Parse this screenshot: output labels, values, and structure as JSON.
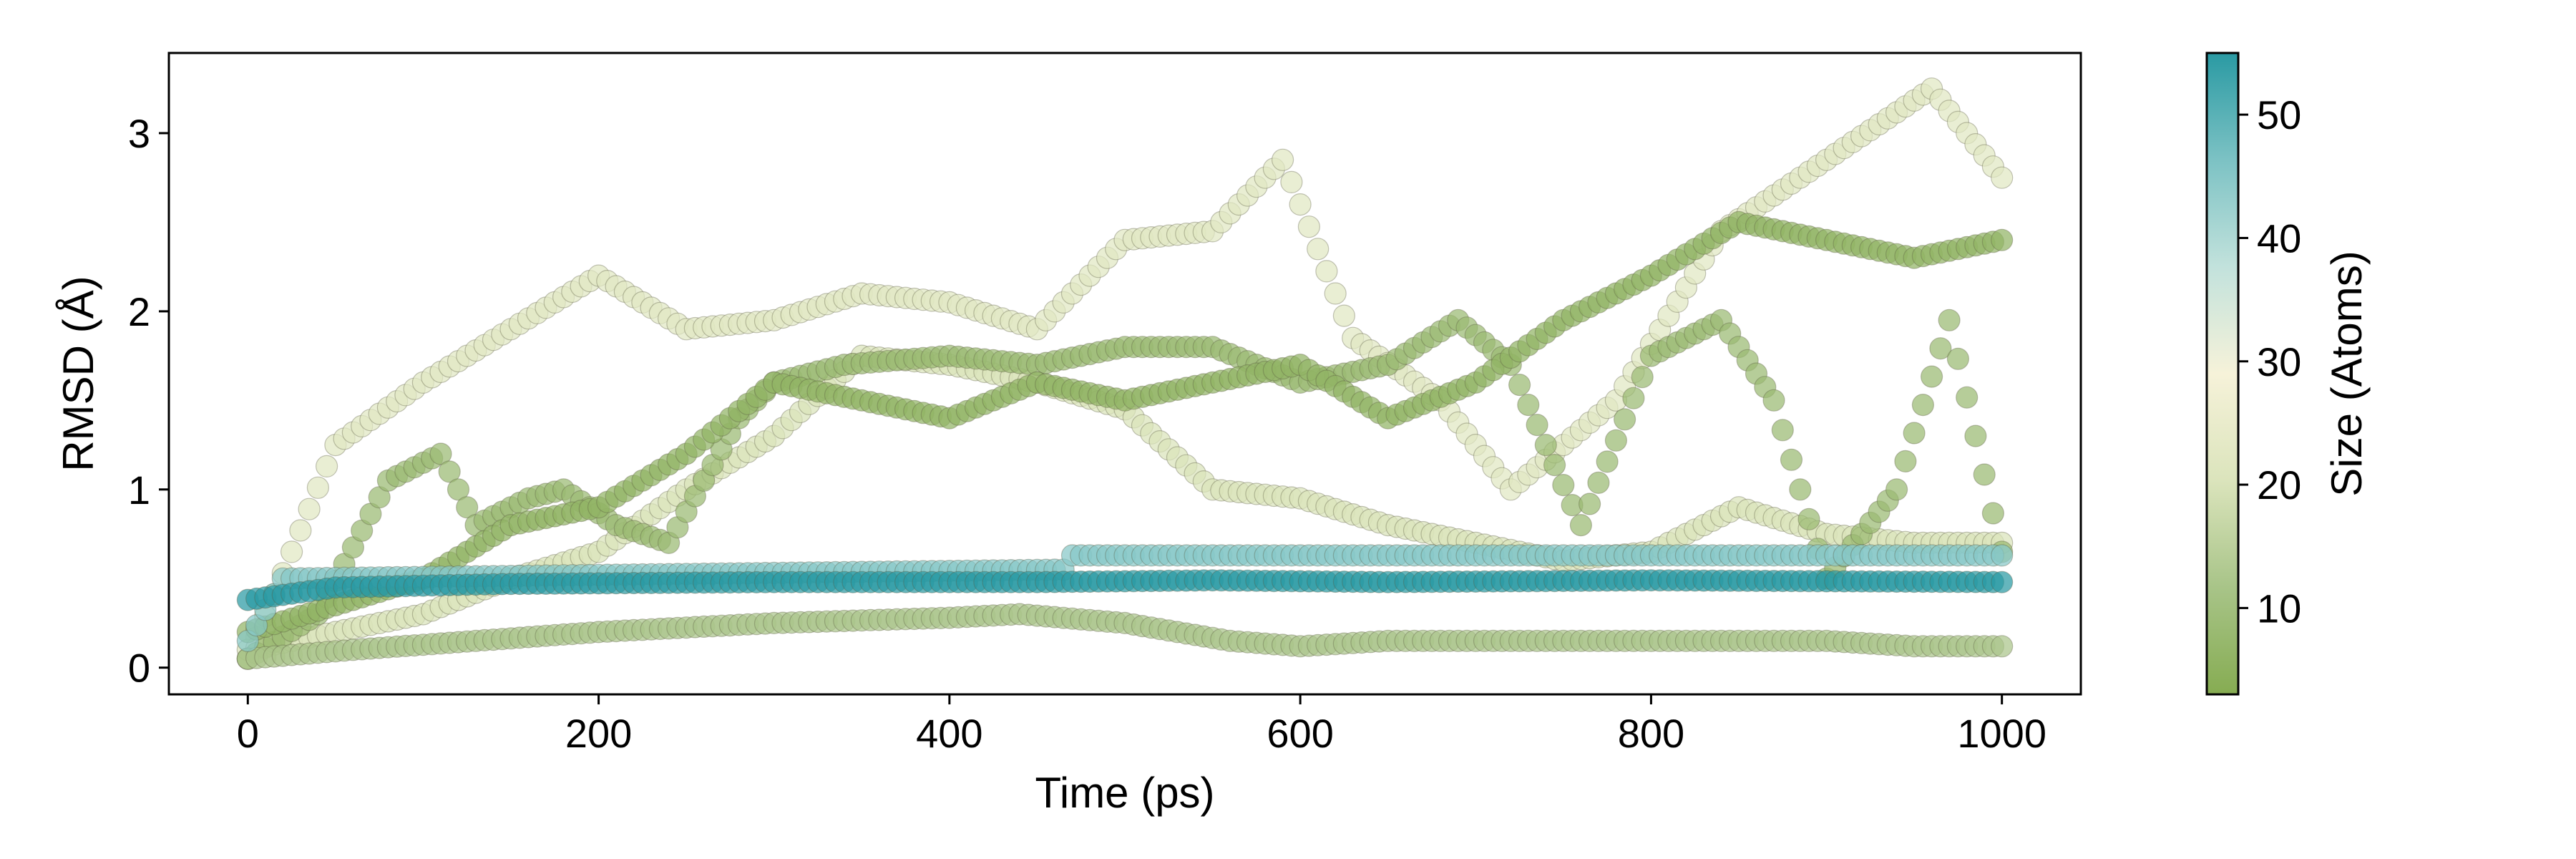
{
  "chart_data": {
    "type": "scatter",
    "title": "",
    "xlabel": "Time (ps)",
    "ylabel": "RMSD (Å)",
    "xlim": [
      -45,
      1045
    ],
    "ylim": [
      -0.15,
      3.45
    ],
    "xticks": [
      0,
      200,
      400,
      600,
      800,
      1000
    ],
    "yticks": [
      0,
      1,
      2,
      3
    ],
    "grid": false,
    "colorbar": {
      "label": "Size (Atoms)",
      "range": [
        3,
        55
      ],
      "ticks": [
        10,
        20,
        30,
        40,
        50
      ],
      "colors": [
        "#86ac52",
        "#a8c488",
        "#dbe4bc",
        "#f6f2d9",
        "#c2e2dc",
        "#7cc2c4",
        "#2a9aa3"
      ]
    },
    "series": [
      {
        "size": 22,
        "x": [
          0,
          50,
          100,
          150,
          200,
          250,
          300,
          350,
          400,
          450,
          500,
          550,
          590,
          630,
          680,
          720,
          780,
          840,
          900,
          960,
          1000
        ],
        "y": [
          0.05,
          1.25,
          1.6,
          1.9,
          2.2,
          1.9,
          1.95,
          2.1,
          2.05,
          1.9,
          2.4,
          2.45,
          2.85,
          1.85,
          1.5,
          1.0,
          1.5,
          2.45,
          2.85,
          3.25,
          2.75
        ]
      },
      {
        "size": 20,
        "x": [
          0,
          50,
          100,
          150,
          200,
          250,
          300,
          350,
          400,
          450,
          500,
          550,
          600,
          650,
          700,
          750,
          800,
          850,
          900,
          950,
          1000
        ],
        "y": [
          0.1,
          0.2,
          0.3,
          0.5,
          0.65,
          1.0,
          1.3,
          1.75,
          1.7,
          1.6,
          1.45,
          1.0,
          0.95,
          0.8,
          0.7,
          0.6,
          0.65,
          0.9,
          0.75,
          0.7,
          0.7
        ]
      },
      {
        "size": 8,
        "x": [
          0,
          40,
          80,
          110,
          130,
          160,
          180,
          210,
          240,
          280,
          300,
          340,
          400,
          450,
          500,
          550,
          600,
          650,
          690,
          720,
          760,
          800,
          840,
          870,
          900,
          940,
          970,
          1000
        ],
        "y": [
          0.05,
          0.3,
          1.05,
          1.2,
          0.8,
          0.95,
          1.0,
          0.8,
          0.7,
          1.4,
          1.6,
          1.7,
          1.75,
          1.7,
          1.8,
          1.8,
          1.6,
          1.7,
          1.95,
          1.7,
          0.8,
          1.75,
          1.95,
          1.5,
          0.5,
          1.0,
          1.95,
          0.65
        ]
      },
      {
        "size": 6,
        "x": [
          0,
          100,
          150,
          200,
          250,
          300,
          350,
          400,
          450,
          500,
          550,
          600,
          650,
          700,
          750,
          800,
          850,
          900,
          950,
          1000
        ],
        "y": [
          0.2,
          0.5,
          0.8,
          0.9,
          1.2,
          1.6,
          1.5,
          1.4,
          1.6,
          1.5,
          1.6,
          1.7,
          1.4,
          1.6,
          1.95,
          2.2,
          2.5,
          2.4,
          2.3,
          2.4
        ]
      },
      {
        "size": 12,
        "x": [
          0,
          60,
          130,
          200,
          300,
          400,
          440,
          500,
          560,
          600,
          650,
          700,
          750,
          800,
          850,
          900,
          950,
          1000
        ],
        "y": [
          0.05,
          0.1,
          0.15,
          0.2,
          0.25,
          0.28,
          0.3,
          0.25,
          0.15,
          0.12,
          0.15,
          0.15,
          0.15,
          0.15,
          0.15,
          0.15,
          0.12,
          0.12
        ]
      },
      {
        "size": 45,
        "x": [
          0,
          20,
          465,
          470,
          1000
        ],
        "y": [
          0.15,
          0.5,
          0.55,
          0.63,
          0.63
        ]
      },
      {
        "size": 55,
        "x": [
          0,
          50,
          150,
          300,
          450,
          550,
          650,
          800,
          1000
        ],
        "y": [
          0.38,
          0.45,
          0.47,
          0.48,
          0.48,
          0.49,
          0.48,
          0.49,
          0.48
        ]
      }
    ]
  }
}
